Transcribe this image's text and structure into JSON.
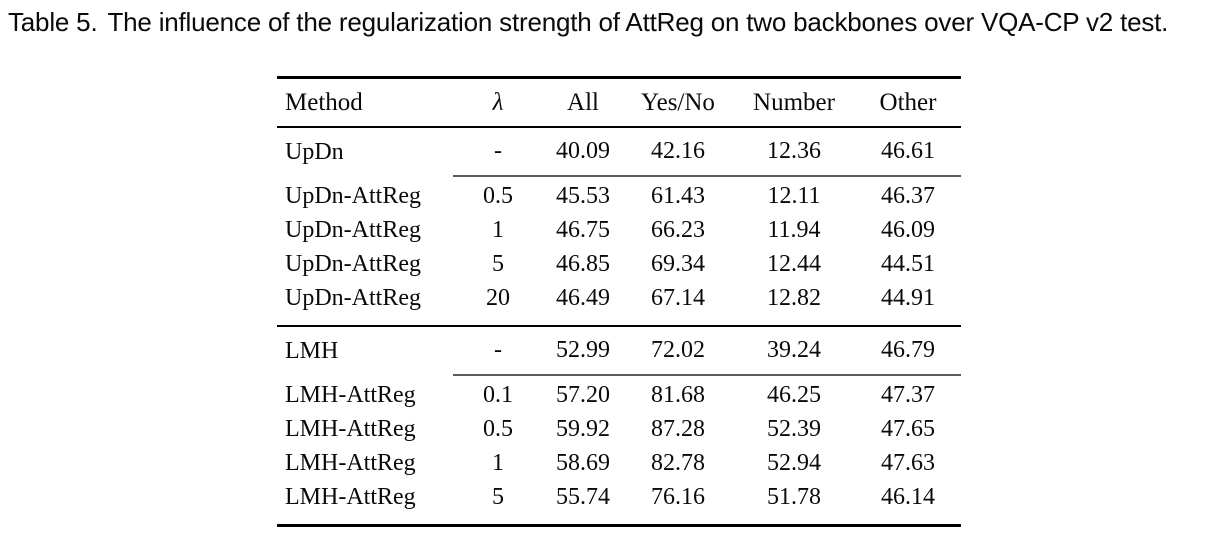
{
  "caption": {
    "label": "Table 5.",
    "text": "The influence of the regularization strength of AttReg on two backbones over VQA-CP v2 test."
  },
  "table": {
    "headers": [
      "Method",
      "λ",
      "All",
      "Yes/No",
      "Number",
      "Other"
    ],
    "rows": [
      {
        "cells": [
          "UpDn",
          "-",
          "40.09",
          "42.16",
          "12.36",
          "46.61"
        ],
        "bold": [
          5
        ],
        "baseline": true,
        "rule_after": "partial"
      },
      {
        "cells": [
          "UpDn-AttReg",
          "0.5",
          "45.53",
          "61.43",
          "12.11",
          "46.37"
        ],
        "bold": [],
        "pad_top": true
      },
      {
        "cells": [
          "UpDn-AttReg",
          "1",
          "46.75",
          "66.23",
          "11.94",
          "46.09"
        ],
        "bold": []
      },
      {
        "cells": [
          "UpDn-AttReg",
          "5",
          "46.85",
          "69.34",
          "12.44",
          "44.51"
        ],
        "bold": [
          2,
          3
        ]
      },
      {
        "cells": [
          "UpDn-AttReg",
          "20",
          "46.49",
          "67.14",
          "12.82",
          "44.91"
        ],
        "bold": [
          4
        ],
        "rule_after": "full",
        "pad_bottom": true
      },
      {
        "cells": [
          "LMH",
          "-",
          "52.99",
          "72.02",
          "39.24",
          "46.79"
        ],
        "bold": [],
        "baseline": true,
        "rule_after": "partial"
      },
      {
        "cells": [
          "LMH-AttReg",
          "0.1",
          "57.20",
          "81.68",
          "46.25",
          "47.37"
        ],
        "bold": [],
        "pad_top": true
      },
      {
        "cells": [
          "LMH-AttReg",
          "0.5",
          "59.92",
          "87.28",
          "52.39",
          "47.65"
        ],
        "bold": [
          2,
          3,
          5
        ]
      },
      {
        "cells": [
          "LMH-AttReg",
          "1",
          "58.69",
          "82.78",
          "52.94",
          "47.63"
        ],
        "bold": [
          4
        ]
      },
      {
        "cells": [
          "LMH-AttReg",
          "5",
          "55.74",
          "76.16",
          "51.78",
          "46.14"
        ],
        "bold": [],
        "pad_bottom": true
      }
    ]
  }
}
